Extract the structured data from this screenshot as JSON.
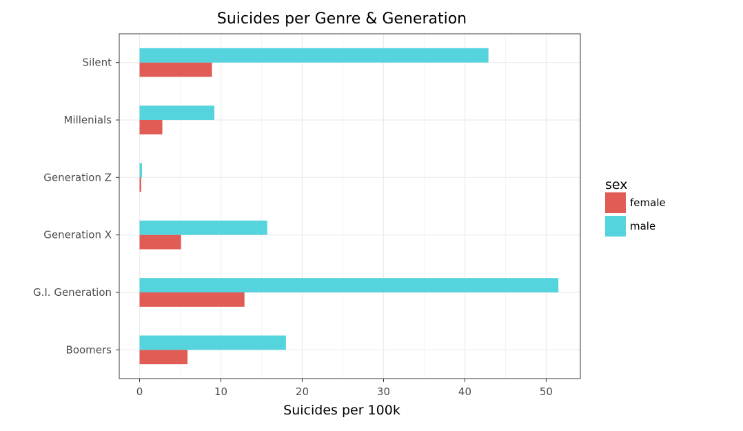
{
  "chart_data": {
    "type": "bar",
    "orientation": "horizontal",
    "title": "Suicides per Genre & Generation",
    "xlabel": "Suicides per 100k",
    "ylabel": "",
    "categories": [
      "Boomers",
      "G.I. Generation",
      "Generation X",
      "Generation Z",
      "Millenials",
      "Silent"
    ],
    "series": [
      {
        "name": "female",
        "color": "#e05c55",
        "values": [
          5.9,
          12.9,
          5.1,
          0.2,
          2.8,
          8.9
        ]
      },
      {
        "name": "male",
        "color": "#56d4dd",
        "values": [
          18.0,
          51.5,
          15.7,
          0.3,
          9.2,
          42.9
        ]
      }
    ],
    "xlim": [
      -2.5,
      54.2
    ],
    "xticks": [
      0,
      10,
      20,
      30,
      40,
      50
    ],
    "grid": true,
    "legend": {
      "title": "sex",
      "placement": "right"
    }
  }
}
